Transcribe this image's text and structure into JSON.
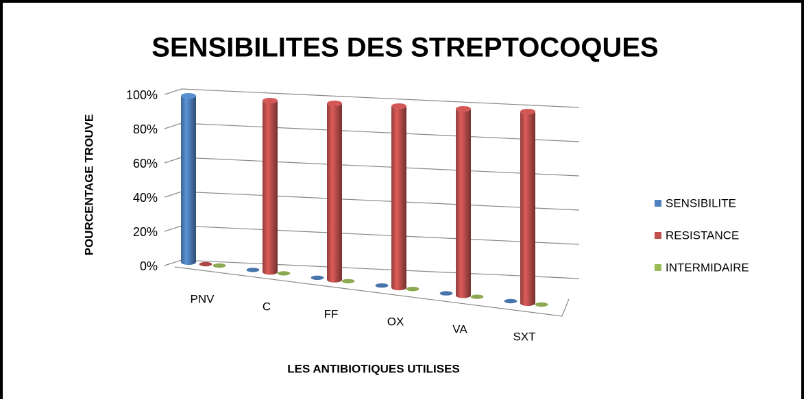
{
  "chart_data": {
    "type": "bar",
    "title": "SENSIBILITES DES STREPTOCOQUES",
    "x_label": "LES ANTIBIOTIQUES UTILISES",
    "y_label": "POURCENTAGE TROUVE",
    "categories": [
      "PNV",
      "C",
      "FF",
      "OX",
      "VA",
      "SXT"
    ],
    "series": [
      {
        "name": "SENSIBILITE",
        "color": "#4f81bd",
        "values": [
          100,
          0,
          0,
          0,
          0,
          0
        ]
      },
      {
        "name": "RESISTANCE",
        "color": "#c0504d",
        "values": [
          0,
          100,
          100,
          100,
          100,
          100
        ]
      },
      {
        "name": "INTERMIDAIRE",
        "color": "#9bbb59",
        "values": [
          0,
          0,
          0,
          0,
          0,
          0
        ]
      }
    ],
    "ylim": [
      0,
      100
    ],
    "yticks": [
      {
        "value": 0,
        "label": "0%"
      },
      {
        "value": 20,
        "label": "20%"
      },
      {
        "value": 40,
        "label": "40%"
      },
      {
        "value": 60,
        "label": "60%"
      },
      {
        "value": 80,
        "label": "80%"
      },
      {
        "value": 100,
        "label": "100%"
      }
    ],
    "grid": true,
    "legend": "right"
  }
}
